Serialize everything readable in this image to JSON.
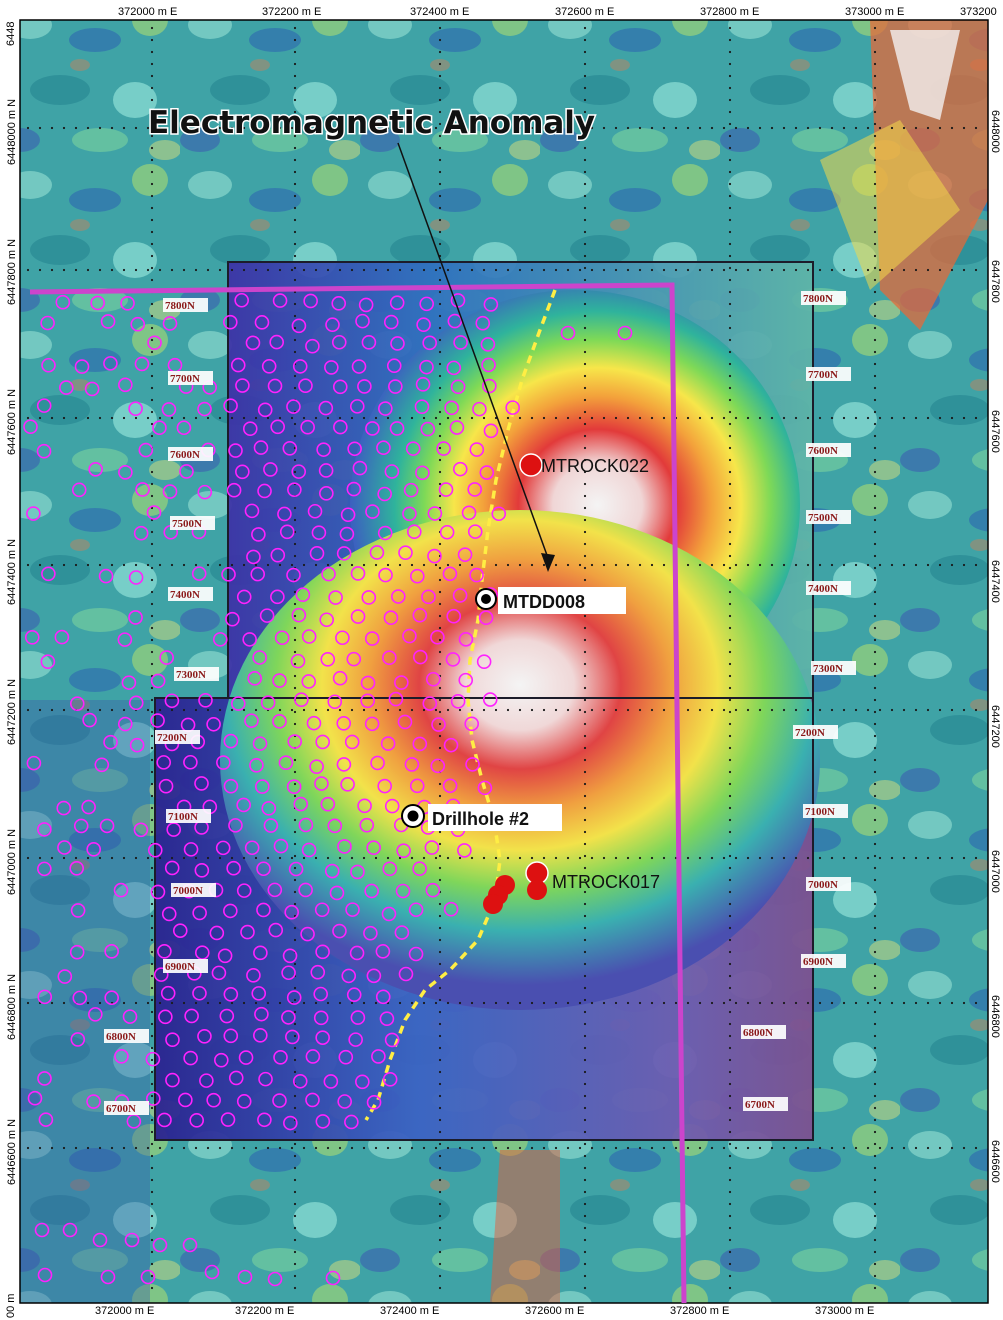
{
  "title": "Electromagnetic Anomaly",
  "grid": {
    "x_ticks_top": [
      "372000 m E",
      "372200 m E",
      "372400 m E",
      "372600 m E",
      "372800 m E",
      "373000 m E",
      "373200"
    ],
    "x_ticks_bottom": [
      "372000 m E",
      "372200 m E",
      "372400 m E",
      "372600 m E",
      "372800 m E",
      "373000 m E"
    ],
    "y_ticks_left": [
      "6448000 m N",
      "6447800 m N",
      "6447600 m N",
      "6447400 m N",
      "6447200 m N",
      "6447000 m N",
      "6446800 m N",
      "6446600 m N"
    ],
    "y_ticks_right": [
      "6448000",
      "6447800",
      "6447600",
      "6447400",
      "6447200",
      "6447000",
      "6446800",
      "6446600"
    ],
    "corner_top": "6448",
    "corner_bottom": "00 m"
  },
  "survey_lines_left": [
    "7800N",
    "7700N",
    "7600N",
    "7500N",
    "7400N",
    "7300N",
    "7200N",
    "7100N",
    "7000N",
    "6900N",
    "6800N",
    "6700N"
  ],
  "survey_lines_right": [
    "7800N",
    "7700N",
    "7600N",
    "7500N",
    "7400N",
    "7300N",
    "7200N",
    "7100N",
    "7000N",
    "6900N",
    "6800N",
    "6700N"
  ],
  "labels": {
    "mtrock022": "MTROCK022",
    "mtdd008": "MTDD008",
    "drillhole": "Drillhole #2",
    "mtrock017": "MTROCK017"
  },
  "colors": {
    "claim_boundary": "#cc44cc",
    "sample_marker": "#ff22ff",
    "rock_sample": "#dd1111",
    "trend_line": "#ffee44",
    "anomaly_core": "#f2f2f2"
  },
  "icons": {
    "drillhole_marker": "bullseye-icon",
    "rock_sample": "red-dot-icon",
    "soil_sample": "magenta-ring-icon"
  }
}
